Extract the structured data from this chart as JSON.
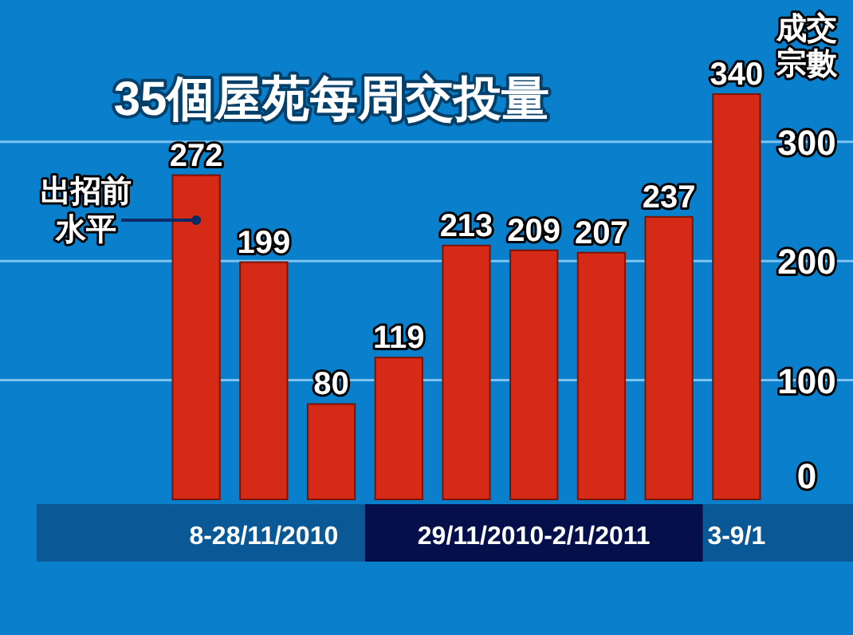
{
  "chart_data": {
    "type": "bar",
    "title": "35個屋苑每周交投量",
    "ylabel": "成交宗數",
    "categories": [
      null,
      null,
      null,
      null,
      null,
      null,
      null,
      null,
      null
    ],
    "values": [
      272,
      199,
      80,
      119,
      213,
      209,
      207,
      237,
      340
    ],
    "color": "#d42a16",
    "ylim": [
      0,
      340
    ],
    "yticks": [
      0,
      100,
      200,
      300
    ],
    "grid": "y",
    "data_labels": true,
    "annotations": [
      "8-28/11/2010",
      "29/11/2010-2/1/2011",
      "3-9/1",
      "出招前水平"
    ]
  }
}
